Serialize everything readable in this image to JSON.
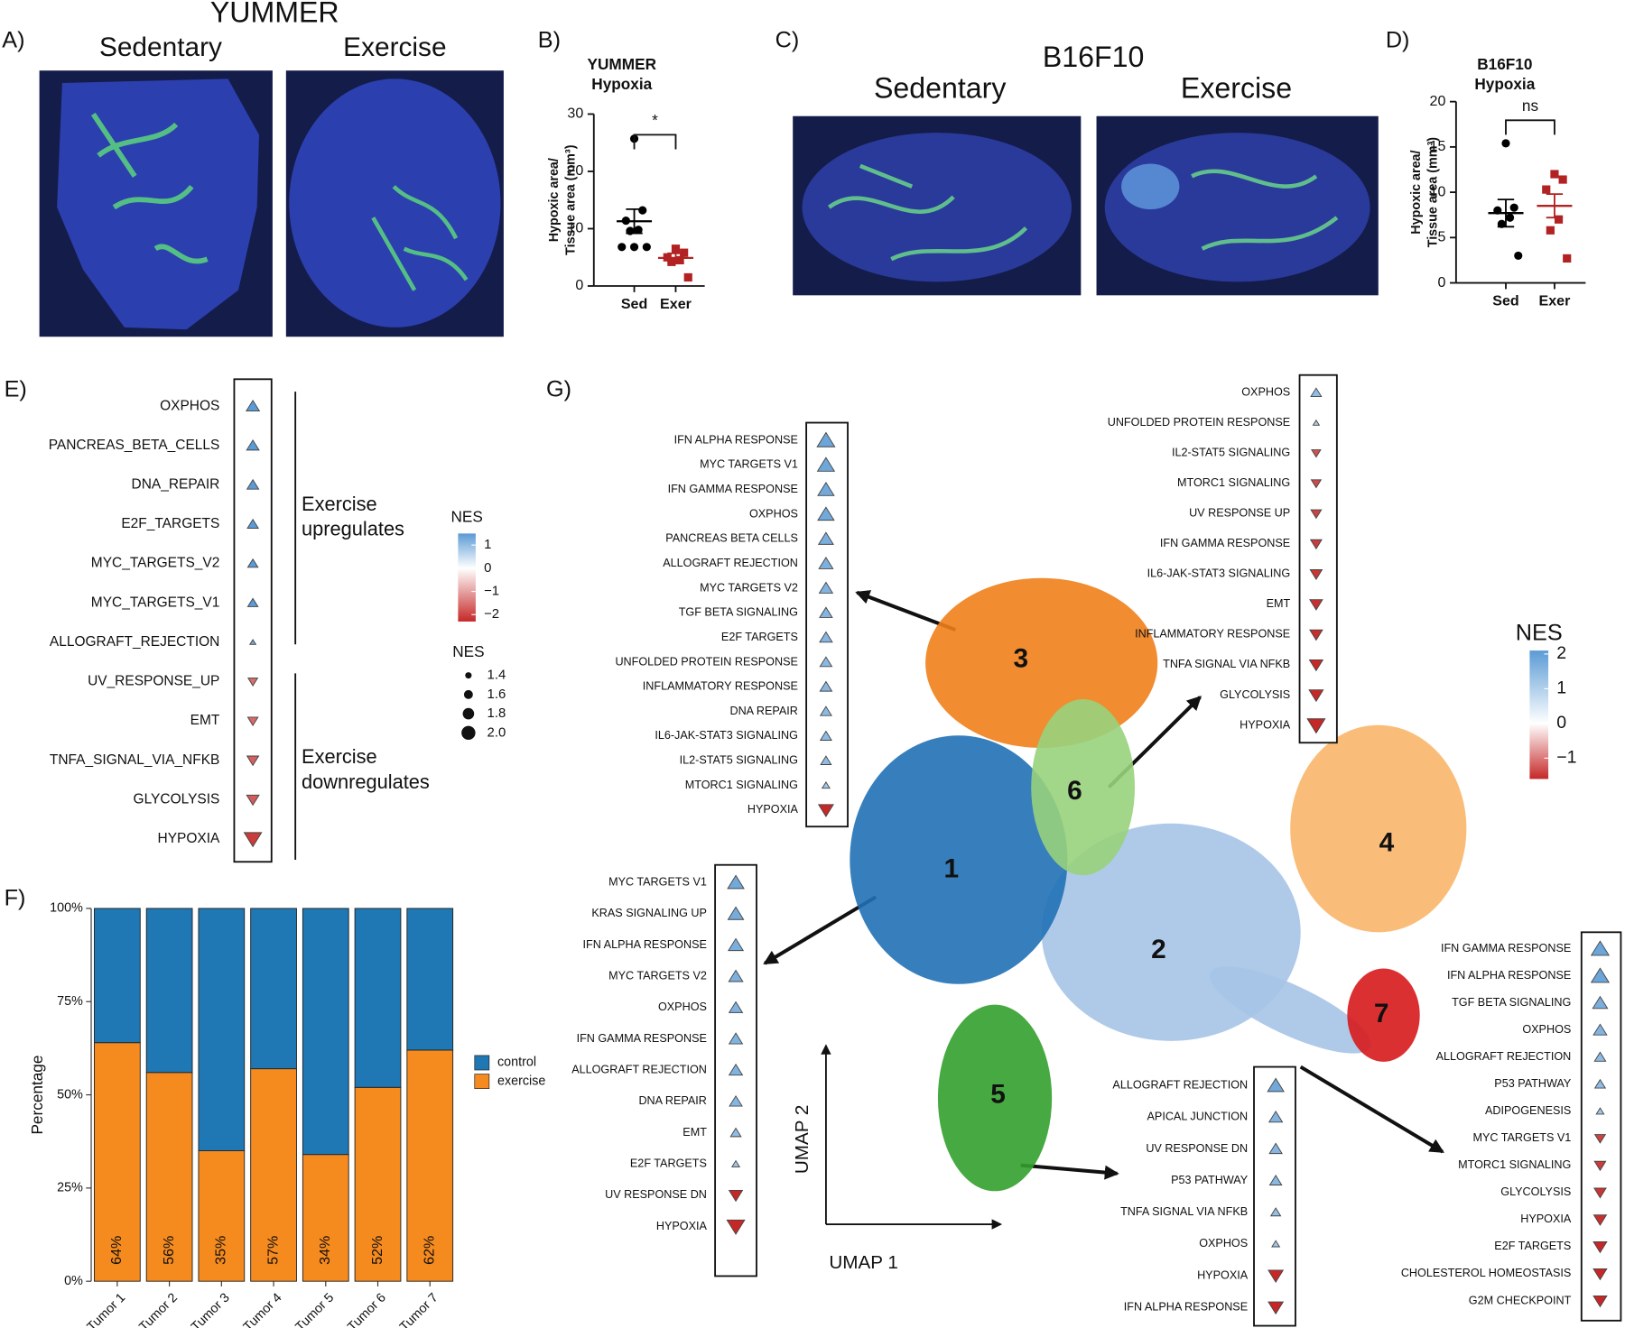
{
  "panel_a": {
    "label": "A)",
    "title": "YUMMER",
    "images": [
      "Sedentary",
      "Exercise"
    ]
  },
  "panel_c": {
    "label": "C)",
    "title": "B16F10",
    "images": [
      "Sedentary",
      "Exercise"
    ]
  },
  "chart_data": [
    {
      "type": "scatter",
      "panel_label": "B)",
      "title": [
        "YUMMER",
        "Hypoxia"
      ],
      "ylabel": [
        "Hypoxic area/",
        "Tissue area (mm³)"
      ],
      "categories": [
        "Sed",
        "Exer"
      ],
      "series": [
        {
          "color": "#000000",
          "marker": "circle",
          "values": [
            25.7,
            13.2,
            11.4,
            9.8,
            9.6,
            6.8,
            6.8,
            6.8
          ],
          "mean": 11.3,
          "sem": 2.1
        },
        {
          "color": "#b22222",
          "marker": "square",
          "values": [
            6.5,
            5.8,
            5,
            4.5,
            4.2,
            1.5
          ],
          "mean": 4.9,
          "sem": 0.8
        }
      ],
      "significance": "*",
      "ylim": [
        0,
        30
      ],
      "yticks": [
        0,
        10,
        20,
        30
      ]
    },
    {
      "type": "scatter",
      "panel_label": "D)",
      "title": [
        "B16F10",
        "Hypoxia"
      ],
      "ylabel": [
        "Hypoxic area/",
        "Tissue area (mm³)"
      ],
      "categories": [
        "Sed",
        "Exer"
      ],
      "series": [
        {
          "color": "#000000",
          "marker": "circle",
          "values": [
            15.4,
            8.3,
            8,
            7.2,
            6.5,
            3
          ],
          "mean": 7.7,
          "sem": 1.5
        },
        {
          "color": "#b22222",
          "marker": "square",
          "values": [
            12,
            11.4,
            10.3,
            7,
            5.8,
            2.7
          ],
          "mean": 8.5,
          "sem": 1.3
        }
      ],
      "significance": "ns",
      "ylim": [
        0,
        20
      ],
      "yticks": [
        0,
        5,
        10,
        15,
        20
      ]
    },
    {
      "type": "dotplot",
      "panel_label": "E)",
      "categories": [
        "OXPHOS",
        "PANCREAS_BETA_CELLS",
        "DNA_REPAIR",
        "E2F_TARGETS",
        "MYC_TARGETS_V2",
        "MYC_TARGETS_V1",
        "ALLOGRAFT_REJECTION",
        "UV_RESPONSE_UP",
        "EMT",
        "TNFA_SIGNAL_VIA_NFKB",
        "GLYCOLYSIS",
        "HYPOXIA"
      ],
      "values": [
        1.8,
        1.75,
        1.7,
        1.65,
        1.6,
        1.6,
        1.3,
        -1.55,
        -1.6,
        -1.7,
        -1.75,
        -2.1
      ],
      "brackets": [
        [
          "Exercise",
          "upregulates"
        ],
        [
          "Exercise",
          "downregulates"
        ]
      ],
      "colorbar": {
        "title": "NES",
        "lim": [
          -2.3,
          1.5
        ],
        "ticks": [
          1,
          0,
          {
            "value": -1,
            "label": "−1"
          },
          {
            "value": -2,
            "label": "−2"
          }
        ],
        "low": "#c62828",
        "mid": "#ffffff",
        "high": "#5b9bd5"
      },
      "size_legend": {
        "title": "NES",
        "values": [
          1.4,
          1.6,
          1.8,
          {
            "value": 2,
            "label": "2.0"
          }
        ]
      }
    },
    {
      "type": "bar",
      "panel_label": "F)",
      "ylabel": "Percentage",
      "categories": [
        "Tumor 1",
        "Tumor 2",
        "Tumor 3",
        "Tumor 4",
        "Tumor 5",
        "Tumor 6",
        "Tumor 7"
      ],
      "series": [
        {
          "name": "control",
          "color": "#1f78b4",
          "values": [
            36,
            44,
            65,
            43,
            66,
            48,
            38
          ]
        },
        {
          "name": "exercise",
          "color": "#f58a1f",
          "values": [
            64,
            56,
            35,
            57,
            34,
            52,
            62
          ],
          "value_labels": [
            "64%",
            "56%",
            "35%",
            "57%",
            "34%",
            "52%",
            "62%"
          ]
        }
      ],
      "ylim": [
        0,
        100
      ],
      "yticks": [
        {
          "value": 0,
          "label": "0%"
        },
        {
          "value": 25,
          "label": "25%"
        },
        {
          "value": 50,
          "label": "50%"
        },
        {
          "value": 75,
          "label": "75%"
        },
        {
          "value": 100,
          "label": "100%"
        }
      ]
    },
    {
      "type": "umap",
      "panel_label": "G)",
      "xlabel": "UMAP 1",
      "ylabel": "UMAP 2",
      "clusters": [
        "1",
        "2",
        "3",
        "4",
        "5",
        "6",
        "7"
      ],
      "cluster_colors": [
        "#2171b5",
        "#a6c4e6",
        "#f07f1a",
        "#f9b66a",
        "#33a02c",
        "#98d17c",
        "#d7191c"
      ],
      "highlight_color": "#e02020",
      "colorbar": {
        "title": "NES",
        "lim": [
          -1.6,
          2.1
        ],
        "ticks": [
          2,
          1,
          0,
          {
            "value": -1,
            "label": "−1"
          }
        ],
        "low": "#c62828",
        "mid": "#ffffff",
        "high": "#5b9bd5"
      },
      "boxes": [
        {
          "items": [
            {
              "label": "IFN ALPHA RESPONSE",
              "nes": 1.9
            },
            {
              "label": "MYC TARGETS V1",
              "nes": 1.85
            },
            {
              "label": "IFN GAMMA RESPONSE",
              "nes": 1.8
            },
            {
              "label": "OXPHOS",
              "nes": 1.8,
              "highlight": true
            },
            {
              "label": "PANCREAS BETA CELLS",
              "nes": 1.7
            },
            {
              "label": "ALLOGRAFT REJECTION",
              "nes": 1.65
            },
            {
              "label": "MYC TARGETS V2",
              "nes": 1.6
            },
            {
              "label": "TGF BETA SIGNALING",
              "nes": 1.55
            },
            {
              "label": "E2F TARGETS",
              "nes": 1.55
            },
            {
              "label": "UNFOLDED PROTEIN RESPONSE",
              "nes": 1.5
            },
            {
              "label": "INFLAMMATORY RESPONSE",
              "nes": 1.5
            },
            {
              "label": "DNA REPAIR",
              "nes": 1.45
            },
            {
              "label": "IL6-JAK-STAT3 SIGNALING",
              "nes": 1.45
            },
            {
              "label": "IL2-STAT5 SIGNALING",
              "nes": 1.4
            },
            {
              "label": "MTORC1 SIGNALING",
              "nes": 1.2
            },
            {
              "label": "HYPOXIA",
              "nes": -1.7,
              "highlight": true
            }
          ]
        },
        {
          "items": [
            {
              "label": "OXPHOS",
              "nes": 1.4,
              "highlight": true
            },
            {
              "label": "UNFOLDED PROTEIN RESPONSE",
              "nes": 1.1
            },
            {
              "label": "IL2-STAT5 SIGNALING",
              "nes": -1.3
            },
            {
              "label": "MTORC1 SIGNALING",
              "nes": -1.35
            },
            {
              "label": "UV RESPONSE UP",
              "nes": -1.4
            },
            {
              "label": "IFN GAMMA RESPONSE",
              "nes": -1.45
            },
            {
              "label": "IL6-JAK-STAT3 SIGNALING",
              "nes": -1.5
            },
            {
              "label": "EMT",
              "nes": -1.55
            },
            {
              "label": "INFLAMMATORY RESPONSE",
              "nes": -1.55
            },
            {
              "label": "TNFA SIGNAL VIA NFKB",
              "nes": -1.6
            },
            {
              "label": "GLYCOLYSIS",
              "nes": -1.65
            },
            {
              "label": "HYPOXIA",
              "nes": -1.9,
              "highlight": true
            }
          ]
        },
        {
          "items": [
            {
              "label": "MYC TARGETS V1",
              "nes": 1.8
            },
            {
              "label": "KRAS SIGNALING UP",
              "nes": 1.75
            },
            {
              "label": "IFN ALPHA RESPONSE",
              "nes": 1.7
            },
            {
              "label": "MYC TARGETS V2",
              "nes": 1.65
            },
            {
              "label": "OXPHOS",
              "nes": 1.6,
              "highlight": true
            },
            {
              "label": "IFN GAMMA RESPONSE",
              "nes": 1.6
            },
            {
              "label": "ALLOGRAFT REJECTION",
              "nes": 1.6
            },
            {
              "label": "DNA REPAIR",
              "nes": 1.55
            },
            {
              "label": "EMT",
              "nes": 1.4
            },
            {
              "label": "E2F TARGETS",
              "nes": 1.2
            },
            {
              "label": "UV RESPONSE DN",
              "nes": -1.6
            },
            {
              "label": "HYPOXIA",
              "nes": -1.9,
              "highlight": true
            }
          ]
        },
        {
          "items": [
            {
              "label": "ALLOGRAFT REJECTION",
              "nes": 1.8
            },
            {
              "label": "APICAL JUNCTION",
              "nes": 1.6
            },
            {
              "label": "UV RESPONSE DN",
              "nes": 1.55
            },
            {
              "label": "P53 PATHWAY",
              "nes": 1.5
            },
            {
              "label": "TNFA SIGNAL VIA NFKB",
              "nes": 1.35
            },
            {
              "label": "OXPHOS",
              "nes": 1.2,
              "highlight": true
            },
            {
              "label": "HYPOXIA",
              "nes": -1.7,
              "highlight": true
            },
            {
              "label": "IFN ALPHA RESPONSE",
              "nes": -1.7
            }
          ]
        },
        {
          "items": [
            {
              "label": "IFN GAMMA RESPONSE",
              "nes": 1.9
            },
            {
              "label": "IFN ALPHA RESPONSE",
              "nes": 1.9
            },
            {
              "label": "TGF BETA SIGNALING",
              "nes": 1.7
            },
            {
              "label": "OXPHOS",
              "nes": 1.6,
              "highlight": true
            },
            {
              "label": "ALLOGRAFT REJECTION",
              "nes": 1.45
            },
            {
              "label": "P53 PATHWAY",
              "nes": 1.4
            },
            {
              "label": "ADIPOGENESIS",
              "nes": 1.2
            },
            {
              "label": "MYC TARGETS V1",
              "nes": -1.4
            },
            {
              "label": "MTORC1 SIGNALING",
              "nes": -1.45
            },
            {
              "label": "GLYCOLYSIS",
              "nes": -1.5
            },
            {
              "label": "HYPOXIA",
              "nes": -1.55,
              "highlight": true
            },
            {
              "label": "E2F TARGETS",
              "nes": -1.6
            },
            {
              "label": "CHOLESTEROL HOMEOSTASIS",
              "nes": -1.6
            },
            {
              "label": "G2M CHECKPOINT",
              "nes": -1.6
            }
          ]
        }
      ]
    }
  ]
}
